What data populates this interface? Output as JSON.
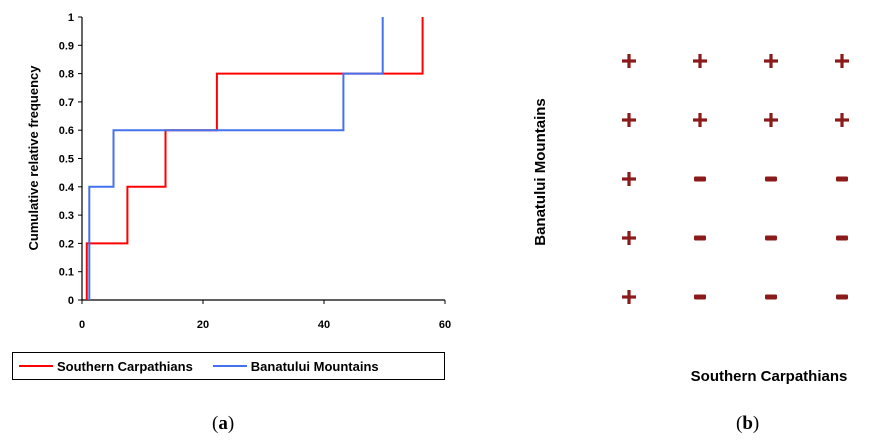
{
  "chart_data": [
    {
      "type": "line",
      "title": "",
      "xlabel": "",
      "ylabel": "Cumulative relative frequency",
      "xlim": [
        0,
        60
      ],
      "ylim": [
        0,
        1
      ],
      "x_ticks": [
        "0",
        "20",
        "40",
        "60"
      ],
      "y_ticks": [
        "0",
        "0.1",
        "0.2",
        "0.3",
        "0.4",
        "0.5",
        "0.6",
        "0.7",
        "0.8",
        "0.9",
        "1"
      ],
      "step": true,
      "grid": false,
      "legend_position": "bottom",
      "series": [
        {
          "name": "Southern Carpathians",
          "color": "#ff0000",
          "x": [
            0.8,
            0.8,
            7.5,
            7.5,
            13.8,
            13.8,
            22.3,
            22.3,
            56.3,
            56.3
          ],
          "y": [
            0,
            0.2,
            0.2,
            0.4,
            0.4,
            0.6,
            0.6,
            0.8,
            0.8,
            1.0
          ]
        },
        {
          "name": "Banatului Mountains",
          "color": "#4472ee",
          "x": [
            1.2,
            1.2,
            5.2,
            5.2,
            43.2,
            43.2,
            49.7,
            49.7
          ],
          "y": [
            0,
            0.4,
            0.4,
            0.6,
            0.6,
            0.8,
            0.8,
            1.0
          ]
        }
      ]
    },
    {
      "type": "table",
      "title": "",
      "xlabel": "Southern Carpathians",
      "ylabel": "Banatului Mountains",
      "rows": [
        [
          "+",
          "+",
          "+",
          "+"
        ],
        [
          "+",
          "+",
          "+",
          "+"
        ],
        [
          "+",
          "-",
          "-",
          "-"
        ],
        [
          "+",
          "-",
          "-",
          "-"
        ],
        [
          "+",
          "-",
          "-",
          "-"
        ]
      ],
      "symbol_color": "#8b1a1a"
    }
  ],
  "captions": {
    "a": {
      "open": "(",
      "letter": "a",
      "close": ")"
    },
    "b": {
      "open": "(",
      "letter": "b",
      "close": ")"
    }
  }
}
